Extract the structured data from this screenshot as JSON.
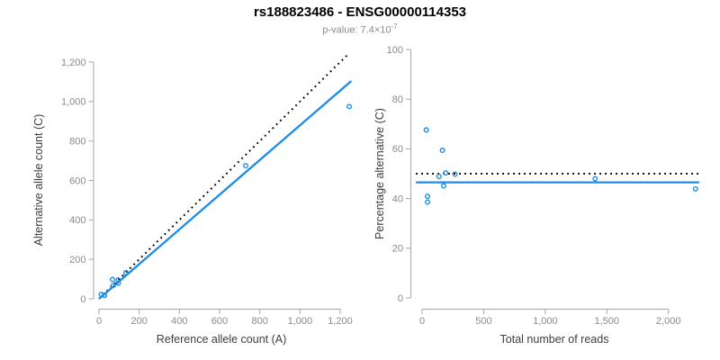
{
  "header": {
    "title": "rs188823486 - ENSG00000114353",
    "subtitle_prefix": "p-value: 7.4×10",
    "subtitle_exponent": "-7"
  },
  "colors": {
    "accent_blue": "#1E8BE8",
    "dotted_black": "#000000",
    "axis_line": "#A6A6A6",
    "tick_label": "#8A8A8A",
    "axis_title": "#3D3D3D",
    "subtitle_gray": "#8A8A8A"
  },
  "chart_data": [
    {
      "name": "allele-count-scatter",
      "type": "scatter",
      "xlabel": "Reference allele count (A)",
      "ylabel": "Alternative allele count (C)",
      "xlim": [
        0,
        1200
      ],
      "ylim": [
        0,
        1200
      ],
      "grid": false,
      "xticks": [
        0,
        200,
        400,
        600,
        800,
        1000,
        1200
      ],
      "xtick_labels": [
        "0",
        "200",
        "400",
        "600",
        "800",
        "1,000",
        "1,200"
      ],
      "yticks": [
        0,
        200,
        400,
        600,
        800,
        1000,
        1200
      ],
      "ytick_labels": [
        "0",
        "200",
        "400",
        "600",
        "800",
        "1,000",
        "1,200"
      ],
      "points": [
        [
          11,
          23
        ],
        [
          26,
          18
        ],
        [
          27,
          17
        ],
        [
          70,
          67
        ],
        [
          67,
          98
        ],
        [
          96,
          79
        ],
        [
          95,
          96
        ],
        [
          134,
          133
        ],
        [
          730,
          675
        ],
        [
          1245,
          975
        ]
      ],
      "lines": [
        {
          "name": "identity-line",
          "style": "dotted",
          "color": "black",
          "coords": [
            [
              0,
              0
            ],
            [
              1240,
              1240
            ]
          ]
        },
        {
          "name": "fit-line",
          "style": "solid",
          "color": "blue",
          "coords": [
            [
              0,
              0
            ],
            [
              1255,
              1104
            ]
          ]
        }
      ]
    },
    {
      "name": "percentage-alternative-scatter",
      "type": "scatter",
      "xlabel": "Total number of reads",
      "ylabel": "Percentage alternative (C)",
      "xlim": [
        0,
        2000
      ],
      "ylim": [
        0,
        100
      ],
      "grid": false,
      "xticks": [
        0,
        500,
        1000,
        1500,
        2000
      ],
      "xtick_labels": [
        "0",
        "500",
        "1,000",
        "1,500",
        "2,000"
      ],
      "yticks": [
        0,
        20,
        40,
        60,
        80,
        100
      ],
      "ytick_labels": [
        "0",
        "20",
        "40",
        "60",
        "80",
        "100"
      ],
      "points": [
        [
          34,
          67.6
        ],
        [
          44,
          40.9
        ],
        [
          44,
          38.6
        ],
        [
          137,
          48.9
        ],
        [
          165,
          59.4
        ],
        [
          175,
          45.1
        ],
        [
          191,
          50.3
        ],
        [
          267,
          49.8
        ],
        [
          1405,
          48.0
        ],
        [
          2220,
          43.9
        ]
      ],
      "lines": [
        {
          "name": "expected-50-line",
          "style": "dotted",
          "color": "black",
          "coords": [
            [
              -50,
              50
            ],
            [
              2250,
              50
            ]
          ]
        },
        {
          "name": "mean-fraction-line",
          "style": "solid",
          "color": "blue",
          "coords": [
            [
              -50,
              46.5
            ],
            [
              2250,
              46.5
            ]
          ]
        }
      ]
    }
  ]
}
